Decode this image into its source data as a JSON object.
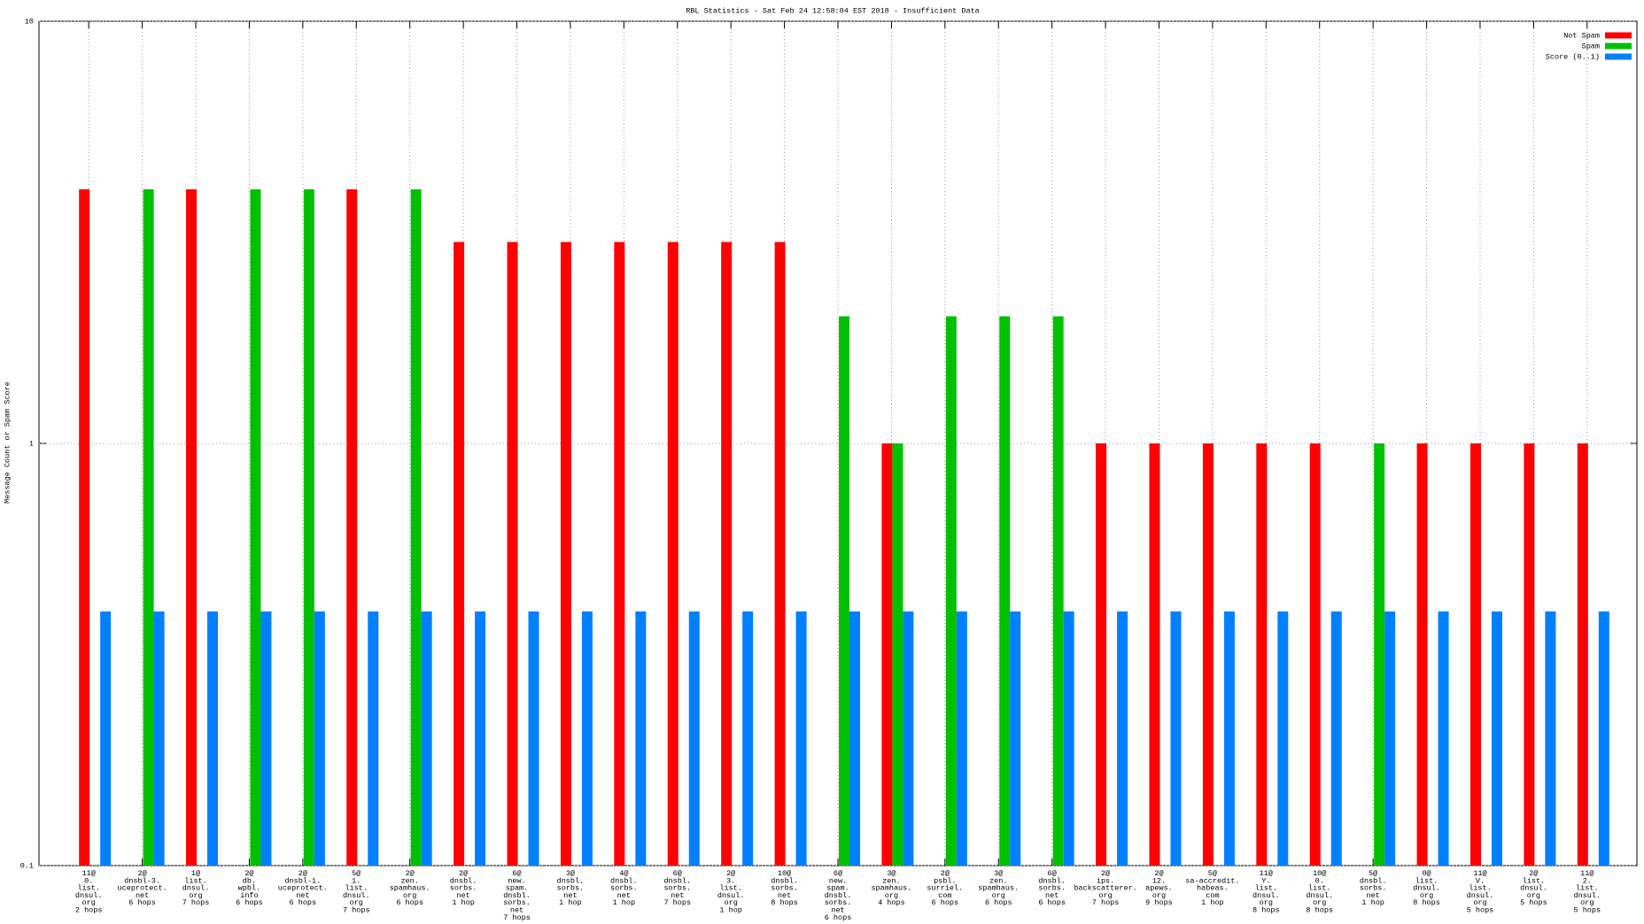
{
  "chart_data": {
    "type": "bar",
    "title": "RBL Statistics - Sat Feb 24 12:58:04 EST 2018 - Insufficient Data",
    "y_label": "Message Count or Spam Score",
    "categories": [
      [
        "11@",
        "0.",
        "list.",
        "dnsul.",
        "org",
        "2 hops"
      ],
      [
        "2@",
        "dnsbl-3.",
        "uceprotect.",
        "net",
        "6 hops"
      ],
      [
        "1@",
        "list.",
        "dnsul.",
        "org",
        "7 hops"
      ],
      [
        "2@",
        "db.",
        "wpbl.",
        "info",
        "6 hops"
      ],
      [
        "2@",
        "dnsbl-1.",
        "uceprotect.",
        "net",
        "6 hops"
      ],
      [
        "5@",
        "1.",
        "list.",
        "dnsul.",
        "org",
        "7 hops"
      ],
      [
        "2@",
        "zen.",
        "spamhaus.",
        "org",
        "6 hops"
      ],
      [
        "2@",
        "dnsbl.",
        "sorbs.",
        "net",
        "1 hop"
      ],
      [
        "6@",
        "new.",
        "spam.",
        "dnsbl.",
        "sorbs.",
        "net",
        "7 hops"
      ],
      [
        "3@",
        "dnsbl.",
        "sorbs.",
        "net",
        "1 hop"
      ],
      [
        "4@",
        "dnsbl.",
        "sorbs.",
        "net",
        "1 hop"
      ],
      [
        "6@",
        "dnsbl.",
        "sorbs.",
        "net",
        "7 hops"
      ],
      [
        "2@",
        "3.",
        "list.",
        "dnsul.",
        "org",
        "1 hop"
      ],
      [
        "10@",
        "dnsbl.",
        "sorbs.",
        "net",
        "8 hops"
      ],
      [
        "6@",
        "new.",
        "spam.",
        "dnsbl.",
        "sorbs.",
        "net",
        "6 hops"
      ],
      [
        "3@",
        "zen.",
        "spamhaus.",
        "org",
        "4 hops"
      ],
      [
        "2@",
        "psbl.",
        "surriel.",
        "com",
        "6 hops"
      ],
      [
        "3@",
        "zen.",
        "spamhaus.",
        "org",
        "6 hops"
      ],
      [
        "6@",
        "dnsbl.",
        "sorbs.",
        "net",
        "6 hops"
      ],
      [
        "2@",
        "ips.",
        "backscatterer.",
        "org",
        "7 hops"
      ],
      [
        "2@",
        "12.",
        "apews.",
        "org",
        "9 hops"
      ],
      [
        "5@",
        "sa-accredit.",
        "habeas.",
        "com",
        "1 hop"
      ],
      [
        "11@",
        "Y.",
        "list.",
        "dnsul.",
        "org",
        "8 hops"
      ],
      [
        "10@",
        "0.",
        "list.",
        "dnsul.",
        "org",
        "8 hops"
      ],
      [
        "5@",
        "dnsbl.",
        "sorbs.",
        "net",
        "1 hop"
      ],
      [
        "0@",
        "list.",
        "dnsul.",
        "org",
        "8 hops"
      ],
      [
        "11@",
        "V.",
        "list.",
        "dnsul.",
        "org",
        "5 hops"
      ],
      [
        "2@",
        "list.",
        "dnsul.",
        "org",
        "5 hops"
      ],
      [
        "11@",
        "2.",
        "list.",
        "dnsul.",
        "org",
        "5 hops"
      ]
    ],
    "series": [
      {
        "name": "Not Spam",
        "color": "#ff0000",
        "values": [
          4,
          null,
          4,
          null,
          null,
          4,
          null,
          3,
          3,
          3,
          3,
          3,
          3,
          3,
          null,
          1,
          null,
          null,
          null,
          1,
          1,
          1,
          1,
          1,
          null,
          1,
          1,
          1,
          1
        ]
      },
      {
        "name": "Spam",
        "color": "#00c000",
        "values": [
          null,
          4,
          null,
          4,
          4,
          null,
          4,
          null,
          null,
          null,
          null,
          null,
          null,
          null,
          2,
          1,
          2,
          2,
          2,
          null,
          null,
          null,
          null,
          null,
          1,
          null,
          null,
          null,
          null
        ]
      },
      {
        "name": "Score (0..1)",
        "color": "#0080ff",
        "values": [
          0.4,
          0.4,
          0.4,
          0.4,
          0.4,
          0.4,
          0.4,
          0.4,
          0.4,
          0.4,
          0.4,
          0.4,
          0.4,
          0.4,
          0.4,
          0.4,
          0.4,
          0.4,
          0.4,
          0.4,
          0.4,
          0.4,
          0.4,
          0.4,
          0.4,
          0.4,
          0.4,
          0.4,
          0.4
        ]
      }
    ],
    "ylim": [
      0.1,
      10
    ],
    "yticks": [
      0.1,
      1,
      10
    ],
    "ylog": true,
    "grid": true,
    "legend": "top-right"
  }
}
